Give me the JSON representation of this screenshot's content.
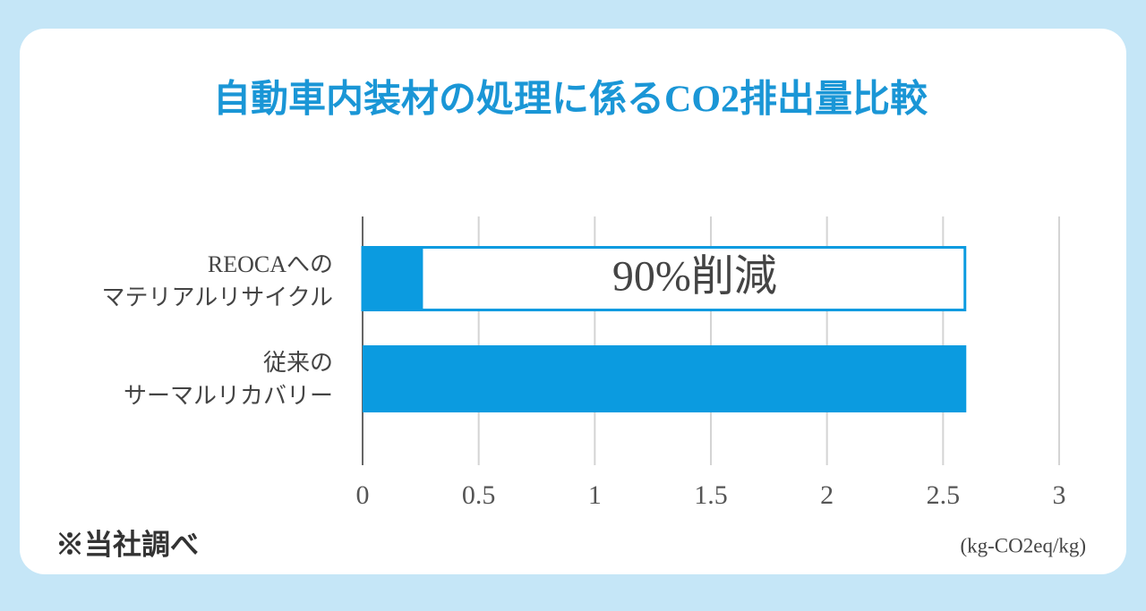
{
  "chart_data": {
    "type": "hbar",
    "title": "自動車内装材の処理に係るCO2排出量比較",
    "categories": [
      [
        "REOCAへの",
        "マテリアルリサイクル"
      ],
      [
        "従来の",
        "サーマルリカバリー"
      ]
    ],
    "values": [
      0.26,
      2.6
    ],
    "color": "#0b9be0",
    "annotation": "90%削減",
    "xlim": [
      0,
      3
    ],
    "xticks": [
      0,
      0.5,
      1,
      1.5,
      2,
      2.5,
      3
    ],
    "x_label": "(kg-CO2eq/kg)",
    "note": "※当社調べ",
    "grid": true
  }
}
